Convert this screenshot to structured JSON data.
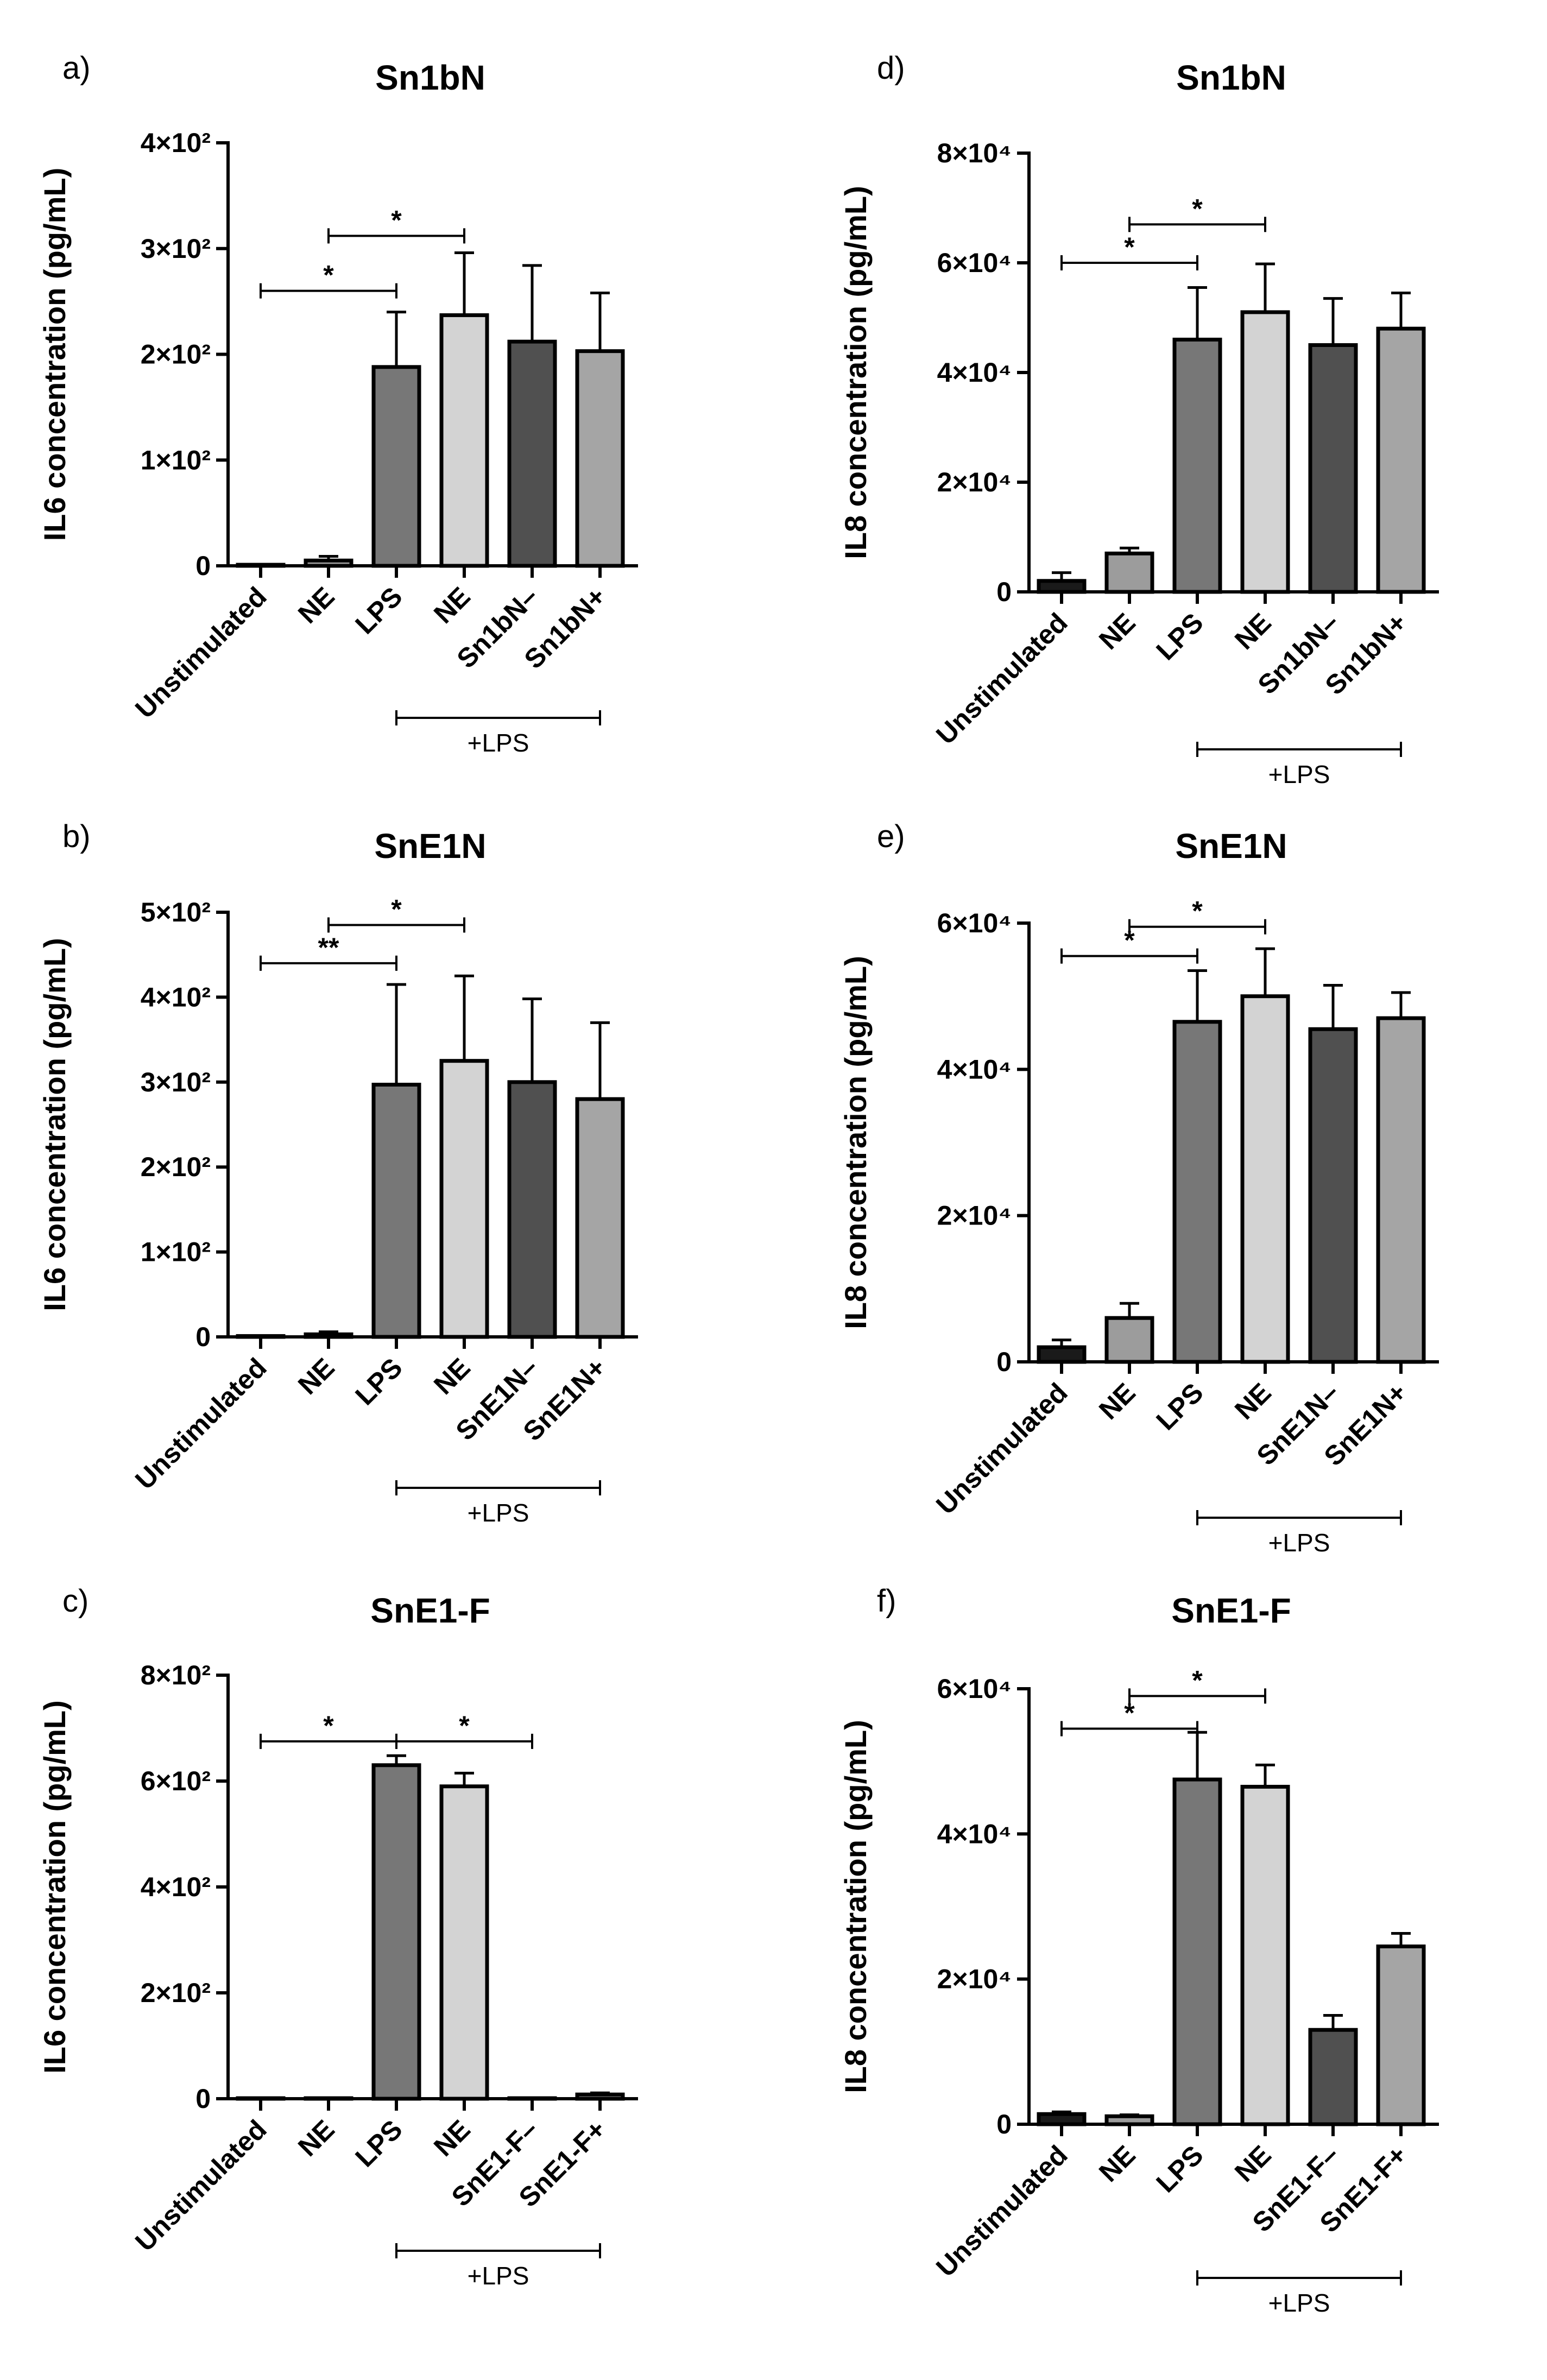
{
  "chart_data": [
    {
      "type": "bar",
      "panel": "a)",
      "title": "Sn1bN",
      "ylabel": "IL6 concentration (pg/mL)",
      "categories": [
        "Unstimulated",
        "NE",
        "LPS",
        "NE",
        "Sn1bN–",
        "Sn1bN+"
      ],
      "values": [
        1,
        5,
        188,
        237,
        212,
        203
      ],
      "errors": [
        0,
        4,
        52,
        59,
        72,
        55
      ],
      "bar_colors": [
        "#1a1a1a",
        "#9c9c9c",
        "#777777",
        "#d3d3d3",
        "#505050",
        "#a5a5a5"
      ],
      "ylim": [
        0,
        400
      ],
      "yticks": [
        0,
        100,
        200,
        300,
        400
      ],
      "ytick_labels": [
        "0",
        "1×10²",
        "2×10²",
        "3×10²",
        "4×10²"
      ],
      "lps_group_label": "+LPS",
      "significance": [
        {
          "from": 0,
          "to": 2,
          "y": 260,
          "label": "*"
        },
        {
          "from": 1,
          "to": 3,
          "y": 312,
          "label": "*"
        }
      ]
    },
    {
      "type": "bar",
      "panel": "b)",
      "title": "SnE1N",
      "ylabel": "IL6 concentration (pg/mL)",
      "categories": [
        "Unstimulated",
        "NE",
        "LPS",
        "NE",
        "SnE1N–",
        "SnE1N+"
      ],
      "values": [
        1,
        3,
        297,
        325,
        300,
        280
      ],
      "errors": [
        0,
        3,
        118,
        100,
        98,
        90
      ],
      "bar_colors": [
        "#1a1a1a",
        "#9c9c9c",
        "#777777",
        "#d3d3d3",
        "#505050",
        "#a5a5a5"
      ],
      "ylim": [
        0,
        500
      ],
      "yticks": [
        0,
        100,
        200,
        300,
        400,
        500
      ],
      "ytick_labels": [
        "0",
        "1×10²",
        "2×10²",
        "3×10²",
        "4×10²",
        "5×10²"
      ],
      "lps_group_label": "+LPS",
      "significance": [
        {
          "from": 0,
          "to": 2,
          "y": 440,
          "label": "**"
        },
        {
          "from": 1,
          "to": 3,
          "y": 485,
          "label": "*"
        }
      ]
    },
    {
      "type": "bar",
      "panel": "c)",
      "title": "SnE1-F",
      "ylabel": "IL6 concentration (pg/mL)",
      "categories": [
        "Unstimulated",
        "NE",
        "LPS",
        "NE",
        "SnE1-F–",
        "SnE1-F+"
      ],
      "values": [
        1,
        1,
        630,
        590,
        1,
        8
      ],
      "errors": [
        0,
        0,
        18,
        25,
        0,
        3
      ],
      "bar_colors": [
        "#1a1a1a",
        "#9c9c9c",
        "#777777",
        "#d3d3d3",
        "#505050",
        "#a5a5a5"
      ],
      "ylim": [
        0,
        800
      ],
      "yticks": [
        0,
        200,
        400,
        600,
        800
      ],
      "ytick_labels": [
        "0",
        "2×10²",
        "4×10²",
        "6×10²",
        "8×10²"
      ],
      "lps_group_label": "+LPS",
      "significance": [
        {
          "from": 0,
          "to": 2,
          "y": 675,
          "label": "*"
        },
        {
          "from": 2,
          "to": 4,
          "y": 675,
          "label": "*"
        }
      ]
    },
    {
      "type": "bar",
      "panel": "d)",
      "title": "Sn1bN",
      "ylabel": "IL8 concentration (pg/mL)",
      "categories": [
        "Unstimulated",
        "NE",
        "LPS",
        "NE",
        "Sn1bN–",
        "Sn1bN+"
      ],
      "values": [
        2000,
        7000,
        46000,
        51000,
        45000,
        48000
      ],
      "errors": [
        1500,
        1000,
        9500,
        8800,
        8500,
        6500
      ],
      "bar_colors": [
        "#1a1a1a",
        "#9c9c9c",
        "#777777",
        "#d3d3d3",
        "#505050",
        "#a5a5a5"
      ],
      "ylim": [
        0,
        80000
      ],
      "yticks": [
        0,
        20000,
        40000,
        60000,
        80000
      ],
      "ytick_labels": [
        "0",
        "2×10⁴",
        "4×10⁴",
        "6×10⁴",
        "8×10⁴"
      ],
      "lps_group_label": "+LPS",
      "significance": [
        {
          "from": 0,
          "to": 2,
          "y": 60000,
          "label": "*"
        },
        {
          "from": 1,
          "to": 3,
          "y": 67000,
          "label": "*"
        }
      ]
    },
    {
      "type": "bar",
      "panel": "e)",
      "title": "SnE1N",
      "ylabel": "IL8 concentration (pg/mL)",
      "categories": [
        "Unstimulated",
        "NE",
        "LPS",
        "NE",
        "SnE1N–",
        "SnE1N+"
      ],
      "values": [
        2000,
        6000,
        46500,
        50000,
        45500,
        47000
      ],
      "errors": [
        1000,
        2000,
        7000,
        6500,
        6000,
        3500
      ],
      "bar_colors": [
        "#1a1a1a",
        "#9c9c9c",
        "#777777",
        "#d3d3d3",
        "#505050",
        "#a5a5a5"
      ],
      "ylim": [
        0,
        60000
      ],
      "yticks": [
        0,
        20000,
        40000,
        60000
      ],
      "ytick_labels": [
        "0",
        "2×10⁴",
        "4×10⁴",
        "6×10⁴"
      ],
      "lps_group_label": "+LPS",
      "significance": [
        {
          "from": 0,
          "to": 2,
          "y": 55500,
          "label": "*"
        },
        {
          "from": 1,
          "to": 3,
          "y": 59500,
          "label": "*"
        }
      ]
    },
    {
      "type": "bar",
      "panel": "f)",
      "title": "SnE1-F",
      "ylabel": "IL8 concentration (pg/mL)",
      "categories": [
        "Unstimulated",
        "NE",
        "LPS",
        "NE",
        "SnE1-F–",
        "SnE1-F+"
      ],
      "values": [
        1400,
        1100,
        47500,
        46500,
        13000,
        24500
      ],
      "errors": [
        300,
        200,
        6500,
        3000,
        2000,
        1800
      ],
      "bar_colors": [
        "#1a1a1a",
        "#9c9c9c",
        "#777777",
        "#d3d3d3",
        "#505050",
        "#a5a5a5"
      ],
      "ylim": [
        0,
        60000
      ],
      "yticks": [
        0,
        20000,
        40000,
        60000
      ],
      "ytick_labels": [
        "0",
        "2×10⁴",
        "4×10⁴",
        "6×10⁴"
      ],
      "lps_group_label": "+LPS",
      "significance": [
        {
          "from": 0,
          "to": 2,
          "y": 54500,
          "label": "*"
        },
        {
          "from": 1,
          "to": 3,
          "y": 59000,
          "label": "*"
        }
      ]
    }
  ]
}
